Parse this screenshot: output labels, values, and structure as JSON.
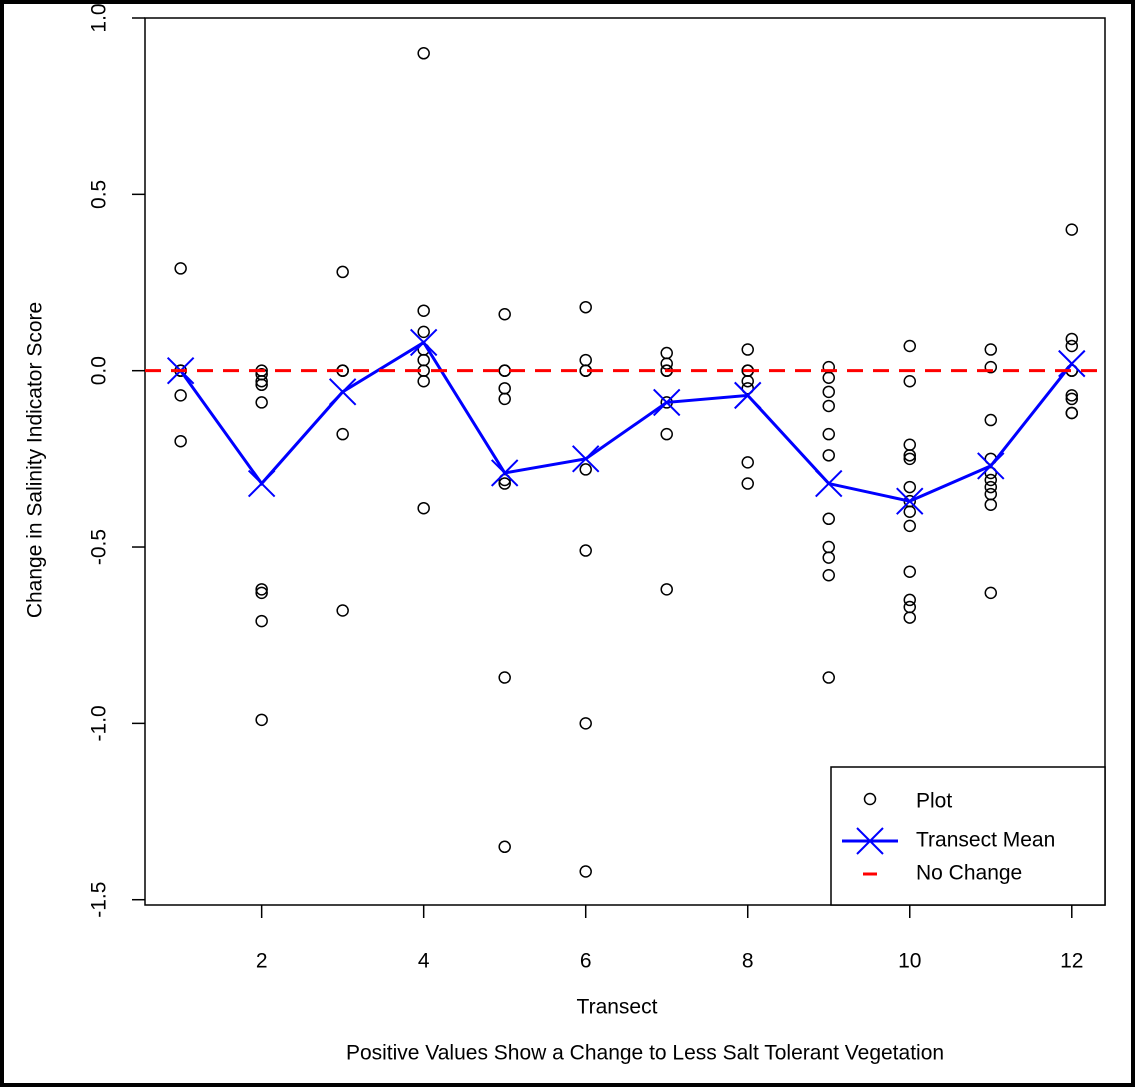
{
  "chart_data": {
    "type": "scatter",
    "x_label": "Transect",
    "y_label": "Change in Salinity Indicator Score",
    "subtitle": "Positive Values Show a Change to Less Salt Tolerant Vegetation",
    "xlim": [
      0.56,
      12.41
    ],
    "ylim": [
      -1.515,
      1.0
    ],
    "xticks": [
      2,
      4,
      6,
      8,
      10,
      12
    ],
    "yticks": [
      {
        "value": -1.5,
        "label": "-1.5"
      },
      {
        "value": -1,
        "label": "-1.0"
      },
      {
        "value": -0.5,
        "label": "-0.5"
      },
      {
        "value": 0,
        "label": "0.0"
      },
      {
        "value": 0.5,
        "label": "0.5"
      },
      {
        "value": 1,
        "label": "1.0"
      }
    ],
    "legend_position": "bottom-right",
    "series": [
      {
        "name": "Plot",
        "color": "#000000",
        "marker": "circle",
        "x": [
          1,
          1,
          1,
          1,
          1,
          2,
          2,
          2,
          2,
          2,
          2,
          2,
          2,
          2,
          3,
          3,
          3,
          3,
          3,
          4,
          4,
          4,
          4,
          4,
          4,
          4,
          4,
          5,
          5,
          5,
          5,
          5,
          5,
          5,
          5,
          5,
          6,
          6,
          6,
          6,
          6,
          6,
          6,
          6,
          7,
          7,
          7,
          7,
          7,
          7,
          7,
          8,
          8,
          8,
          8,
          8,
          8,
          8,
          9,
          9,
          9,
          9,
          9,
          9,
          9,
          9,
          9,
          9,
          9,
          10,
          10,
          10,
          10,
          10,
          10,
          10,
          10,
          10,
          10,
          10,
          10,
          10,
          11,
          11,
          11,
          11,
          11,
          11,
          11,
          11,
          11,
          11,
          12,
          12,
          12,
          12,
          12,
          12,
          12,
          12,
          12
        ],
        "values": [
          0.29,
          0,
          0,
          -0.07,
          -0.2,
          -0.01,
          -0.03,
          -0.04,
          -0.09,
          -0.62,
          -0.63,
          -0.71,
          -0.99,
          0,
          0.28,
          0,
          0,
          -0.18,
          -0.68,
          0.9,
          0.17,
          0.11,
          0.06,
          0.03,
          0,
          -0.03,
          -0.39,
          0.16,
          0,
          0,
          -0.05,
          -0.08,
          -0.31,
          -0.32,
          -0.87,
          -1.35,
          0.18,
          0.03,
          0,
          0,
          -0.28,
          -0.51,
          -1.0,
          -1.42,
          0.05,
          0.02,
          0,
          0,
          -0.09,
          -0.18,
          -0.62,
          0.06,
          0,
          0,
          -0.03,
          -0.05,
          -0.26,
          -0.32,
          0.01,
          -0.02,
          -0.06,
          -0.1,
          -0.18,
          -0.24,
          -0.42,
          -0.5,
          -0.53,
          -0.58,
          -0.87,
          0.07,
          -0.03,
          -0.21,
          -0.24,
          -0.25,
          -0.33,
          -0.37,
          -0.4,
          -0.44,
          -0.57,
          -0.65,
          -0.67,
          -0.7,
          0.06,
          0.01,
          -0.14,
          -0.25,
          -0.29,
          -0.31,
          -0.33,
          -0.35,
          -0.38,
          -0.63,
          0.4,
          0.09,
          0.07,
          0,
          0,
          -0.07,
          -0.08,
          -0.12,
          -0.12
        ]
      },
      {
        "name": "Transect Mean",
        "color": "#0000ff",
        "marker": "x",
        "x": [
          1,
          2,
          3,
          4,
          5,
          6,
          7,
          8,
          9,
          10,
          11,
          12
        ],
        "values": [
          0,
          -0.32,
          -0.06,
          0.08,
          -0.29,
          -0.25,
          -0.09,
          -0.07,
          -0.32,
          -0.37,
          -0.27,
          0.02
        ]
      },
      {
        "name": "No Change",
        "color": "#ff0000",
        "marker": "dashed-hline",
        "y": 0
      }
    ]
  }
}
